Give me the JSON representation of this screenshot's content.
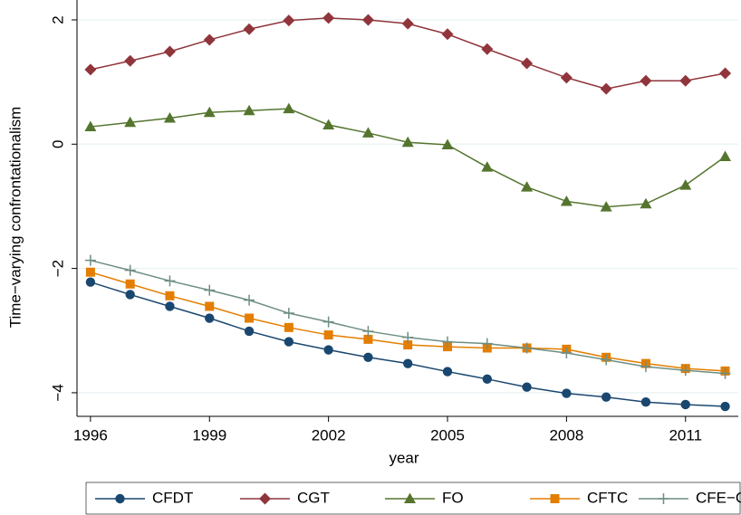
{
  "chart_data": {
    "type": "line",
    "x_label": "year",
    "y_label": "Time−varying confrontationalism",
    "x": [
      1996,
      1997,
      1998,
      1999,
      2000,
      2001,
      2002,
      2003,
      2004,
      2005,
      2006,
      2007,
      2008,
      2009,
      2010,
      2011,
      2012
    ],
    "xlim": [
      1995.66,
      2012.33
    ],
    "xticks": [
      1996,
      1999,
      2002,
      2005,
      2008,
      2011
    ],
    "ylim": [
      -4.38,
      2.32
    ],
    "yticks": [
      {
        "value": -4,
        "label": "−4"
      },
      {
        "value": -2,
        "label": "−2"
      },
      0,
      2
    ],
    "grid": true,
    "legend": "bottom",
    "series": [
      {
        "name": "CFDT",
        "color": "#1a476f",
        "marker": "circle",
        "values": [
          -2.22,
          -2.42,
          -2.61,
          -2.8,
          -3.01,
          -3.18,
          -3.31,
          -3.43,
          -3.53,
          -3.66,
          -3.78,
          -3.91,
          -4.01,
          -4.07,
          -4.15,
          -4.19,
          -4.22
        ]
      },
      {
        "name": "CGT",
        "color": "#90353b",
        "marker": "diamond",
        "values": [
          1.2,
          1.34,
          1.49,
          1.68,
          1.85,
          1.99,
          2.03,
          2.0,
          1.94,
          1.77,
          1.53,
          1.3,
          1.07,
          0.89,
          1.02,
          1.02,
          1.14
        ]
      },
      {
        "name": "FO",
        "color": "#55752f",
        "marker": "triangle",
        "values": [
          0.28,
          0.35,
          0.42,
          0.51,
          0.54,
          0.57,
          0.31,
          0.18,
          0.03,
          -0.01,
          -0.37,
          -0.69,
          -0.92,
          -1.01,
          -0.96,
          -0.66,
          -0.2
        ]
      },
      {
        "name": "CFTC",
        "color": "#e37e00",
        "marker": "square",
        "values": [
          -2.06,
          -2.25,
          -2.44,
          -2.61,
          -2.8,
          -2.95,
          -3.07,
          -3.14,
          -3.23,
          -3.26,
          -3.28,
          -3.28,
          -3.3,
          -3.43,
          -3.53,
          -3.61,
          -3.65
        ]
      },
      {
        "name": "CFE−CGC",
        "color": "#6e8e84",
        "marker": "plus",
        "values": [
          -1.87,
          -2.03,
          -2.2,
          -2.35,
          -2.51,
          -2.72,
          -2.86,
          -3.01,
          -3.11,
          -3.18,
          -3.21,
          -3.28,
          -3.36,
          -3.47,
          -3.58,
          -3.64,
          -3.69
        ]
      }
    ]
  }
}
